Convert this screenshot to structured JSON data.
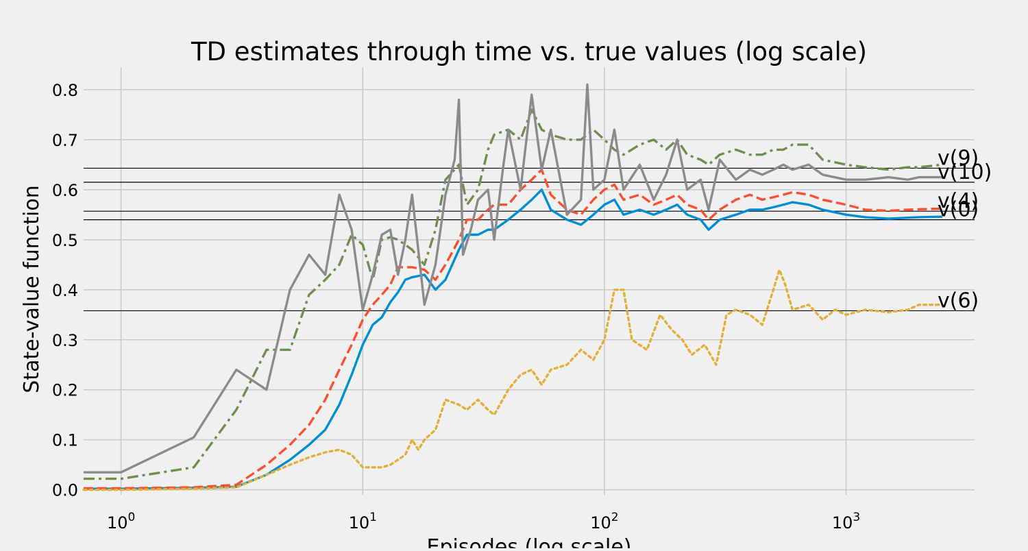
{
  "chart_data": {
    "type": "line",
    "title": "TD estimates through time vs. true values (log scale)",
    "xlabel": "Episodes (log scale)",
    "ylabel": "State-value function",
    "xscale": "log",
    "xlim": [
      0.7,
      3400
    ],
    "ylim": [
      -0.01,
      0.845
    ],
    "x_ticks": [
      {
        "value": 1,
        "base": "10",
        "exp": "0"
      },
      {
        "value": 10,
        "base": "10",
        "exp": "1"
      },
      {
        "value": 100,
        "base": "10",
        "exp": "2"
      },
      {
        "value": 1000,
        "base": "10",
        "exp": "3"
      }
    ],
    "y_ticks": [
      0.0,
      0.1,
      0.2,
      0.3,
      0.4,
      0.5,
      0.6,
      0.7,
      0.8
    ],
    "y_tick_labels": [
      "0.0",
      "0.1",
      "0.2",
      "0.3",
      "0.4",
      "0.5",
      "0.6",
      "0.7",
      "0.8"
    ],
    "grid": true,
    "legend": "none",
    "colors": {
      "background": "#f0f0f0",
      "grid": "#cbcbcb",
      "true_value_line": "#000000"
    },
    "true_values": [
      {
        "label": "v(9)",
        "value": 0.643
      },
      {
        "label": "v(10)",
        "value": 0.615
      },
      {
        "label": "v(4)",
        "value": 0.557
      },
      {
        "label": "v(0)",
        "value": 0.54
      },
      {
        "label": "v(6)",
        "value": 0.358
      }
    ],
    "series": [
      {
        "color": "#008fd5",
        "style": "solid",
        "x": [
          0.7,
          1,
          2,
          3,
          4,
          5,
          6,
          7,
          8,
          9,
          10,
          11,
          12,
          13,
          14,
          15,
          16,
          18,
          20,
          22,
          25,
          27,
          30,
          33,
          35,
          40,
          45,
          50,
          55,
          60,
          70,
          80,
          90,
          100,
          110,
          120,
          140,
          160,
          180,
          200,
          220,
          250,
          270,
          300,
          350,
          400,
          450,
          500,
          550,
          600,
          700,
          800,
          1000,
          1200,
          1500,
          1800,
          2000,
          2500
        ],
        "y": [
          0.002,
          0.002,
          0.004,
          0.006,
          0.03,
          0.06,
          0.09,
          0.12,
          0.17,
          0.23,
          0.29,
          0.33,
          0.345,
          0.375,
          0.395,
          0.42,
          0.425,
          0.43,
          0.4,
          0.42,
          0.48,
          0.51,
          0.51,
          0.52,
          0.52,
          0.54,
          0.56,
          0.58,
          0.6,
          0.56,
          0.54,
          0.53,
          0.55,
          0.57,
          0.58,
          0.55,
          0.56,
          0.55,
          0.56,
          0.57,
          0.55,
          0.54,
          0.52,
          0.54,
          0.55,
          0.56,
          0.56,
          0.565,
          0.57,
          0.575,
          0.57,
          0.56,
          0.55,
          0.545,
          0.542,
          0.544,
          0.545,
          0.546
        ]
      },
      {
        "color": "#fc4f30",
        "style": "dashed",
        "x": [
          0.7,
          1,
          2,
          3,
          4,
          5,
          6,
          7,
          8,
          9,
          10,
          11,
          12,
          13,
          14,
          15,
          16,
          18,
          20,
          22,
          25,
          27,
          30,
          33,
          35,
          40,
          45,
          50,
          55,
          60,
          70,
          80,
          90,
          100,
          110,
          120,
          140,
          160,
          180,
          200,
          220,
          250,
          270,
          300,
          350,
          400,
          450,
          500,
          550,
          600,
          700,
          800,
          1000,
          1200,
          1500,
          1800,
          2000,
          2500
        ],
        "y": [
          0.003,
          0.003,
          0.005,
          0.01,
          0.05,
          0.09,
          0.13,
          0.18,
          0.24,
          0.29,
          0.34,
          0.37,
          0.39,
          0.41,
          0.445,
          0.445,
          0.445,
          0.44,
          0.42,
          0.45,
          0.5,
          0.54,
          0.54,
          0.56,
          0.57,
          0.57,
          0.6,
          0.62,
          0.64,
          0.59,
          0.56,
          0.55,
          0.58,
          0.6,
          0.61,
          0.58,
          0.59,
          0.57,
          0.58,
          0.59,
          0.57,
          0.56,
          0.54,
          0.56,
          0.58,
          0.59,
          0.58,
          0.585,
          0.59,
          0.595,
          0.59,
          0.58,
          0.57,
          0.56,
          0.558,
          0.56,
          0.561,
          0.562
        ]
      },
      {
        "color": "#e5ae38",
        "style": "dotted",
        "x": [
          0.7,
          1,
          2,
          3,
          4,
          5,
          6,
          7,
          8,
          9,
          10,
          11,
          12,
          13,
          14,
          15,
          16,
          17,
          18,
          20,
          22,
          25,
          27,
          30,
          33,
          35,
          40,
          45,
          50,
          55,
          60,
          70,
          80,
          90,
          100,
          110,
          120,
          130,
          150,
          170,
          190,
          210,
          230,
          260,
          290,
          320,
          350,
          400,
          450,
          500,
          530,
          560,
          600,
          700,
          800,
          900,
          1000,
          1200,
          1500,
          1800,
          2000,
          2500
        ],
        "y": [
          0.0,
          0.0,
          0.002,
          0.005,
          0.03,
          0.05,
          0.065,
          0.075,
          0.08,
          0.07,
          0.045,
          0.045,
          0.045,
          0.05,
          0.06,
          0.07,
          0.1,
          0.08,
          0.1,
          0.12,
          0.18,
          0.17,
          0.16,
          0.18,
          0.16,
          0.15,
          0.2,
          0.23,
          0.24,
          0.21,
          0.24,
          0.25,
          0.28,
          0.26,
          0.3,
          0.4,
          0.4,
          0.3,
          0.28,
          0.35,
          0.32,
          0.3,
          0.27,
          0.29,
          0.25,
          0.35,
          0.36,
          0.35,
          0.33,
          0.4,
          0.44,
          0.41,
          0.36,
          0.37,
          0.34,
          0.36,
          0.35,
          0.36,
          0.355,
          0.36,
          0.37,
          0.37
        ]
      },
      {
        "color": "#6d904f",
        "style": "dashdot",
        "x": [
          0.7,
          1,
          2,
          3,
          4,
          5,
          6,
          7,
          8,
          9,
          10,
          11,
          12,
          13,
          14,
          15,
          16,
          18,
          20,
          22,
          25,
          27,
          30,
          33,
          35,
          40,
          45,
          50,
          55,
          60,
          70,
          80,
          90,
          100,
          110,
          120,
          140,
          160,
          180,
          200,
          220,
          250,
          270,
          300,
          350,
          400,
          450,
          500,
          550,
          600,
          700,
          800,
          1000,
          1200,
          1500,
          1800,
          2000,
          2500
        ],
        "y": [
          0.022,
          0.022,
          0.045,
          0.16,
          0.28,
          0.28,
          0.39,
          0.42,
          0.45,
          0.51,
          0.49,
          0.42,
          0.5,
          0.505,
          0.5,
          0.49,
          0.48,
          0.45,
          0.52,
          0.62,
          0.65,
          0.57,
          0.6,
          0.68,
          0.71,
          0.72,
          0.7,
          0.76,
          0.72,
          0.71,
          0.7,
          0.7,
          0.72,
          0.7,
          0.68,
          0.67,
          0.69,
          0.7,
          0.68,
          0.7,
          0.67,
          0.66,
          0.65,
          0.67,
          0.68,
          0.67,
          0.67,
          0.68,
          0.68,
          0.69,
          0.69,
          0.66,
          0.65,
          0.645,
          0.64,
          0.645,
          0.645,
          0.65
        ]
      },
      {
        "color": "#8b8b8b",
        "style": "solid",
        "x": [
          0.7,
          1,
          2,
          3,
          4,
          5,
          6,
          7,
          8,
          9,
          10,
          11,
          12,
          13,
          14,
          15,
          16,
          18,
          20,
          22,
          24,
          25,
          26,
          28,
          30,
          33,
          35,
          38,
          40,
          45,
          50,
          55,
          60,
          70,
          80,
          85,
          90,
          100,
          110,
          120,
          140,
          160,
          180,
          200,
          220,
          250,
          270,
          300,
          350,
          400,
          450,
          500,
          550,
          600,
          700,
          800,
          1000,
          1200,
          1500,
          1800,
          2000,
          2500
        ],
        "y": [
          0.035,
          0.035,
          0.105,
          0.24,
          0.2,
          0.4,
          0.47,
          0.43,
          0.59,
          0.52,
          0.36,
          0.43,
          0.51,
          0.52,
          0.43,
          0.5,
          0.59,
          0.37,
          0.45,
          0.59,
          0.66,
          0.78,
          0.47,
          0.52,
          0.58,
          0.6,
          0.5,
          0.64,
          0.72,
          0.6,
          0.79,
          0.64,
          0.72,
          0.55,
          0.58,
          0.81,
          0.6,
          0.62,
          0.72,
          0.6,
          0.65,
          0.58,
          0.63,
          0.7,
          0.6,
          0.62,
          0.56,
          0.66,
          0.62,
          0.64,
          0.63,
          0.64,
          0.65,
          0.64,
          0.65,
          0.63,
          0.62,
          0.62,
          0.625,
          0.62,
          0.625,
          0.625
        ]
      }
    ]
  }
}
